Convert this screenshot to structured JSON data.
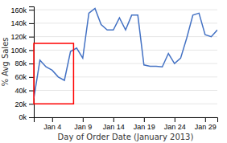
{
  "chart_data": {
    "type": "line",
    "xlabel": "Day of Order Date (January 2013)",
    "ylabel": "% Avg Sales",
    "x": [
      1,
      2,
      3,
      4,
      5,
      6,
      7,
      8,
      9,
      10,
      11,
      12,
      13,
      14,
      15,
      16,
      17,
      18,
      19,
      20,
      21,
      22,
      23,
      24,
      25,
      26,
      27,
      28,
      29,
      30,
      31
    ],
    "values": [
      28,
      85,
      75,
      70,
      60,
      55,
      98,
      103,
      88,
      155,
      162,
      138,
      130,
      130,
      148,
      130,
      152,
      152,
      78,
      76,
      76,
      75,
      95,
      80,
      88,
      118,
      152,
      155,
      123,
      120,
      130
    ],
    "color": "#4472c4",
    "xlim": [
      1,
      31
    ],
    "ylim": [
      0,
      165
    ],
    "xticks": [
      {
        "value": 4,
        "label": "Jan 4"
      },
      {
        "value": 9,
        "label": "Jan 9"
      },
      {
        "value": 14,
        "label": "Jan 14"
      },
      {
        "value": 19,
        "label": "Jan 19"
      },
      {
        "value": 24,
        "label": "Jan 24"
      },
      {
        "value": 29,
        "label": "Jan 29"
      }
    ],
    "yticks": [
      {
        "value": 0,
        "label": "0k"
      },
      {
        "value": 20,
        "label": "20k"
      },
      {
        "value": 40,
        "label": "40k"
      },
      {
        "value": 60,
        "label": "60k"
      },
      {
        "value": 80,
        "label": "80k"
      },
      {
        "value": 100,
        "label": "100k"
      },
      {
        "value": 120,
        "label": "120k"
      },
      {
        "value": 140,
        "label": "140k"
      },
      {
        "value": 160,
        "label": "160k"
      }
    ],
    "grid": true,
    "highlight": {
      "x": [
        1,
        7.5
      ],
      "y": [
        20,
        110
      ],
      "color": "red"
    }
  }
}
